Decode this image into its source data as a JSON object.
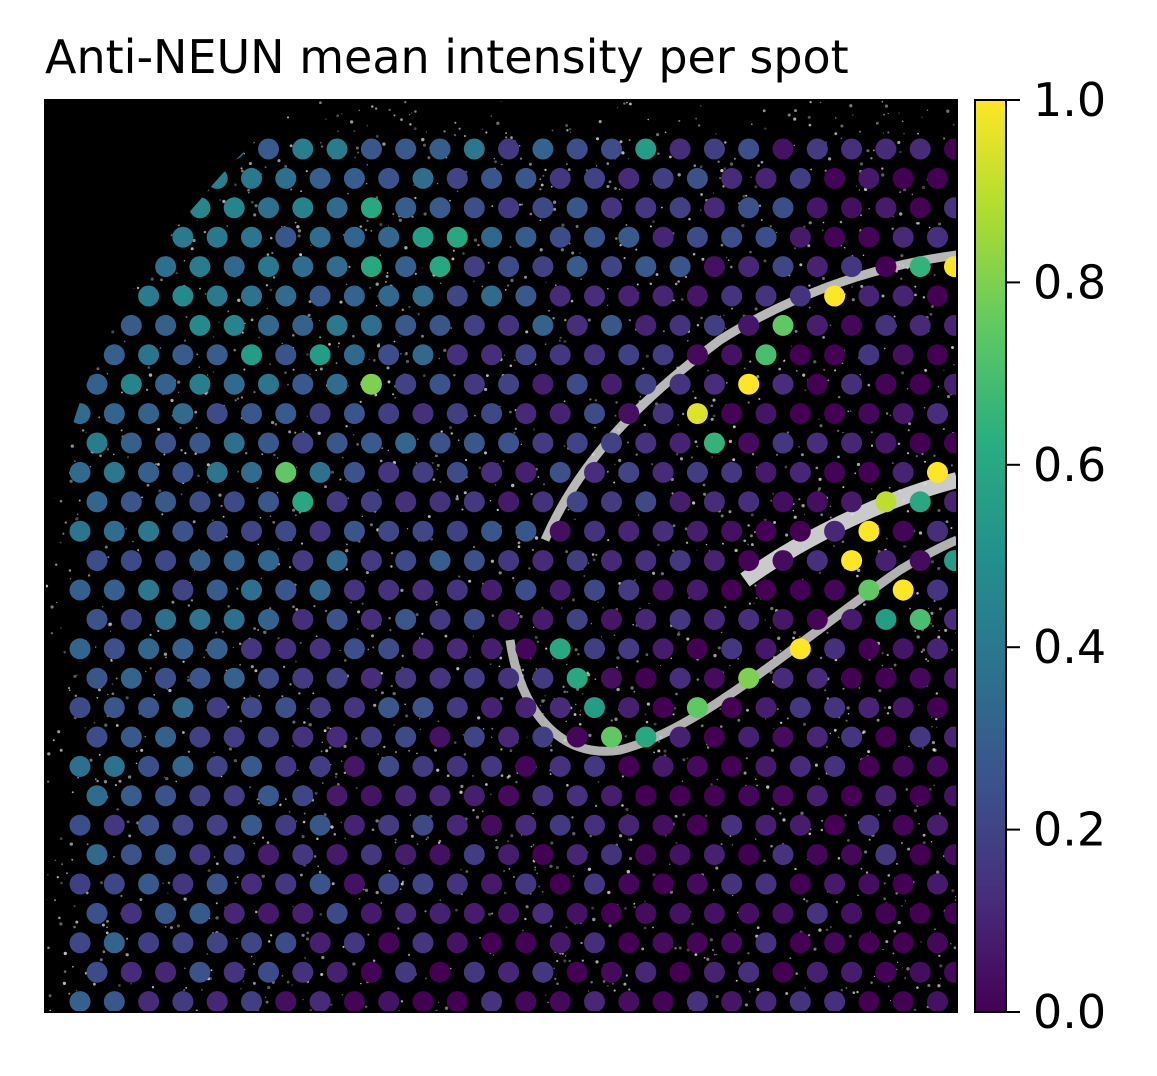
{
  "chart_data": {
    "type": "scatter",
    "title": "Anti-NEUN mean intensity per spot",
    "xlabel": "",
    "ylabel": "",
    "background": "grayscale tissue image (black with white speckle)",
    "colormap": "viridis",
    "colorbar": {
      "range": [
        0.0,
        1.0
      ],
      "ticks": [
        0.0,
        0.2,
        0.4,
        0.6,
        0.8,
        1.0
      ],
      "tick_labels": [
        "0.0",
        "0.2",
        "0.4",
        "0.6",
        "0.8",
        "1.0"
      ],
      "placement": "right"
    },
    "grid": false,
    "axes_ticks": false,
    "spot_grid": {
      "rows": 30,
      "columns": 27,
      "layout": "hexagonal offset"
    },
    "highlighted_spots": [
      {
        "row": 0,
        "col": 16,
        "value": 0.55
      },
      {
        "row": 2,
        "col": 8,
        "value": 0.6
      },
      {
        "row": 3,
        "col": 10,
        "value": 0.55
      },
      {
        "row": 3,
        "col": 11,
        "value": 0.6
      },
      {
        "row": 4,
        "col": 8,
        "value": 0.6
      },
      {
        "row": 4,
        "col": 10,
        "value": 0.6
      },
      {
        "row": 4,
        "col": 24,
        "value": 0.65
      },
      {
        "row": 4,
        "col": 25,
        "value": 1.0
      },
      {
        "row": 4,
        "col": 26,
        "value": 0.5
      },
      {
        "row": 5,
        "col": 22,
        "value": 1.0
      },
      {
        "row": 6,
        "col": 20,
        "value": 0.75
      },
      {
        "row": 7,
        "col": 5,
        "value": 0.55
      },
      {
        "row": 7,
        "col": 7,
        "value": 0.55
      },
      {
        "row": 7,
        "col": 20,
        "value": 0.7
      },
      {
        "row": 8,
        "col": 8,
        "value": 0.8
      },
      {
        "row": 8,
        "col": 19,
        "value": 1.0
      },
      {
        "row": 9,
        "col": 18,
        "value": 0.95
      },
      {
        "row": 10,
        "col": 18,
        "value": 0.65
      },
      {
        "row": 11,
        "col": 6,
        "value": 0.75
      },
      {
        "row": 11,
        "col": 25,
        "value": 1.0
      },
      {
        "row": 11,
        "col": 26,
        "value": 1.0
      },
      {
        "row": 12,
        "col": 6,
        "value": 0.6
      },
      {
        "row": 12,
        "col": 23,
        "value": 0.9
      },
      {
        "row": 12,
        "col": 24,
        "value": 0.6
      },
      {
        "row": 13,
        "col": 23,
        "value": 1.0
      },
      {
        "row": 14,
        "col": 22,
        "value": 1.0
      },
      {
        "row": 14,
        "col": 25,
        "value": 0.55
      },
      {
        "row": 14,
        "col": 26,
        "value": 1.0
      },
      {
        "row": 15,
        "col": 23,
        "value": 0.75
      },
      {
        "row": 15,
        "col": 24,
        "value": 1.0
      },
      {
        "row": 16,
        "col": 23,
        "value": 0.55
      },
      {
        "row": 16,
        "col": 24,
        "value": 0.7
      },
      {
        "row": 17,
        "col": 14,
        "value": 0.6
      },
      {
        "row": 17,
        "col": 21,
        "value": 1.0
      },
      {
        "row": 18,
        "col": 14,
        "value": 0.6
      },
      {
        "row": 18,
        "col": 19,
        "value": 0.8
      },
      {
        "row": 19,
        "col": 15,
        "value": 0.55
      },
      {
        "row": 19,
        "col": 18,
        "value": 0.75
      },
      {
        "row": 20,
        "col": 15,
        "value": 0.75
      },
      {
        "row": 20,
        "col": 16,
        "value": 0.6
      }
    ]
  },
  "colors": {
    "viridis_0": "#440154",
    "viridis_25": "#3b528b",
    "viridis_50": "#21918c",
    "viridis_75": "#5ec962",
    "viridis_100": "#fde725",
    "background": "#000000",
    "tissue_speckle": "#ffffff"
  }
}
